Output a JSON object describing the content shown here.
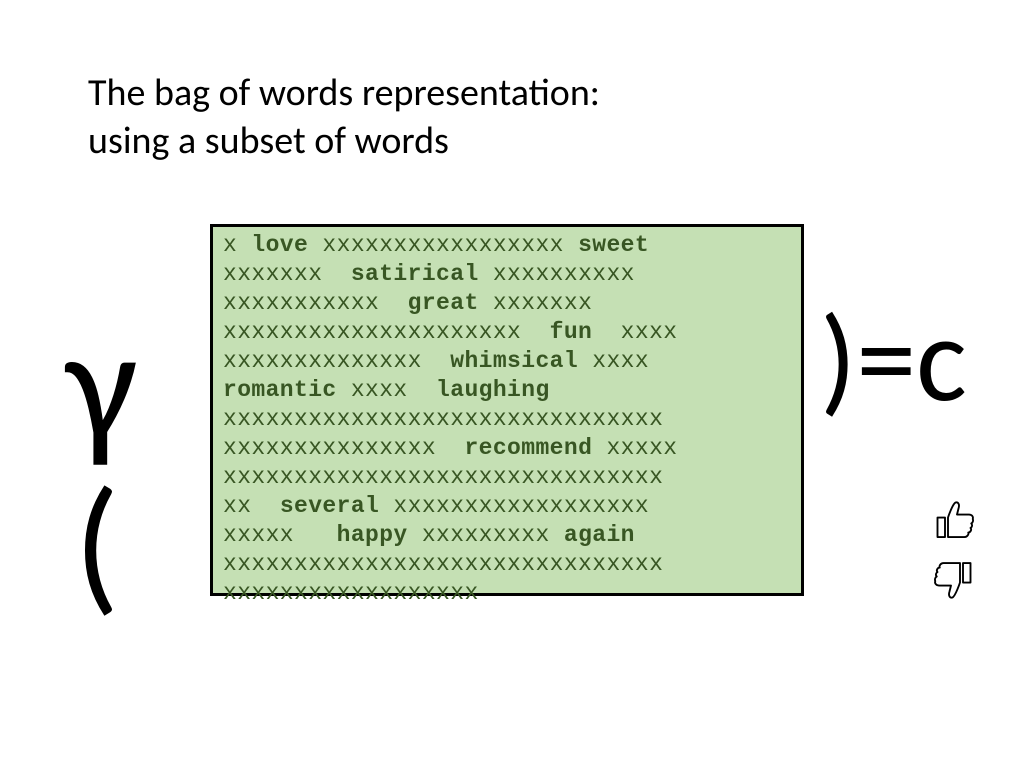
{
  "title": {
    "line1": "The bag of words representation:",
    "line2": "using a subset of words",
    "fontsize": 38,
    "color": "#000000"
  },
  "equation": {
    "gamma": "γ",
    "open_paren": "(",
    "close_equals_c": ")=c",
    "big_fontsize": 150,
    "color": "#000000"
  },
  "icons": {
    "thumbs_up": "thumbs-up-icon",
    "thumbs_down": "thumbs-down-icon",
    "stroke": "#000000",
    "fill": "#ffffff"
  },
  "text_box": {
    "background_color": "#c5e0b4",
    "border_color": "#000000",
    "border_width": 3,
    "font_family": "Courier New",
    "font_size": 23,
    "filler_color": "#385623",
    "keyword_color": "#385623",
    "lines": [
      {
        "l": "x",
        "kw1": "love",
        "m": " xxxxxxxxxxxxxxxxx ",
        "kw2": "sweet",
        "r": ""
      },
      {
        "l": "xxxxxxx ",
        "kw1": "satirical",
        "m": " xxxxxxxxxx",
        "kw2": "",
        "r": ""
      },
      {
        "l": "xxxxxxxxxxx ",
        "kw1": "great",
        "m": " xxxxxxx",
        "kw2": "",
        "r": ""
      },
      {
        "l": "xxxxxxxxxxxxxxxxxxxxx ",
        "kw1": "fun",
        "m": "  xxxx",
        "kw2": "",
        "r": ""
      },
      {
        "l": "xxxxxxxxxxxxxx ",
        "kw1": "whimsical",
        "m": " xxxx",
        "kw2": "",
        "r": ""
      },
      {
        "l": "",
        "kw1": "romantic",
        "m": " xxxx  ",
        "kw2": "laughing",
        "r": ""
      },
      {
        "l": "xxxxxxxxxxxxxxxxxxxxxxxxxxxxxxx",
        "kw1": "",
        "m": "",
        "kw2": "",
        "r": ""
      },
      {
        "l": "xxxxxxxxxxxxxxx ",
        "kw1": "recommend",
        "m": " xxxxx",
        "kw2": "",
        "r": ""
      },
      {
        "l": "xxxxxxxxxxxxxxxxxxxxxxxxxxxxxxx",
        "kw1": "",
        "m": "",
        "kw2": "",
        "r": ""
      },
      {
        "l": "xx ",
        "kw1": "several",
        "m": " xxxxxxxxxxxxxxxxxx",
        "kw2": "",
        "r": ""
      },
      {
        "l": "xxxxx  ",
        "kw1": "happy",
        "m": " xxxxxxxxx ",
        "kw2": "again",
        "r": ""
      },
      {
        "l": "xxxxxxxxxxxxxxxxxxxxxxxxxxxxxxx",
        "kw1": "",
        "m": "",
        "kw2": "",
        "r": ""
      },
      {
        "l": "xxxxxxxxxxxxxxxxxx",
        "kw1": "",
        "m": "",
        "kw2": "",
        "r": ""
      }
    ]
  }
}
